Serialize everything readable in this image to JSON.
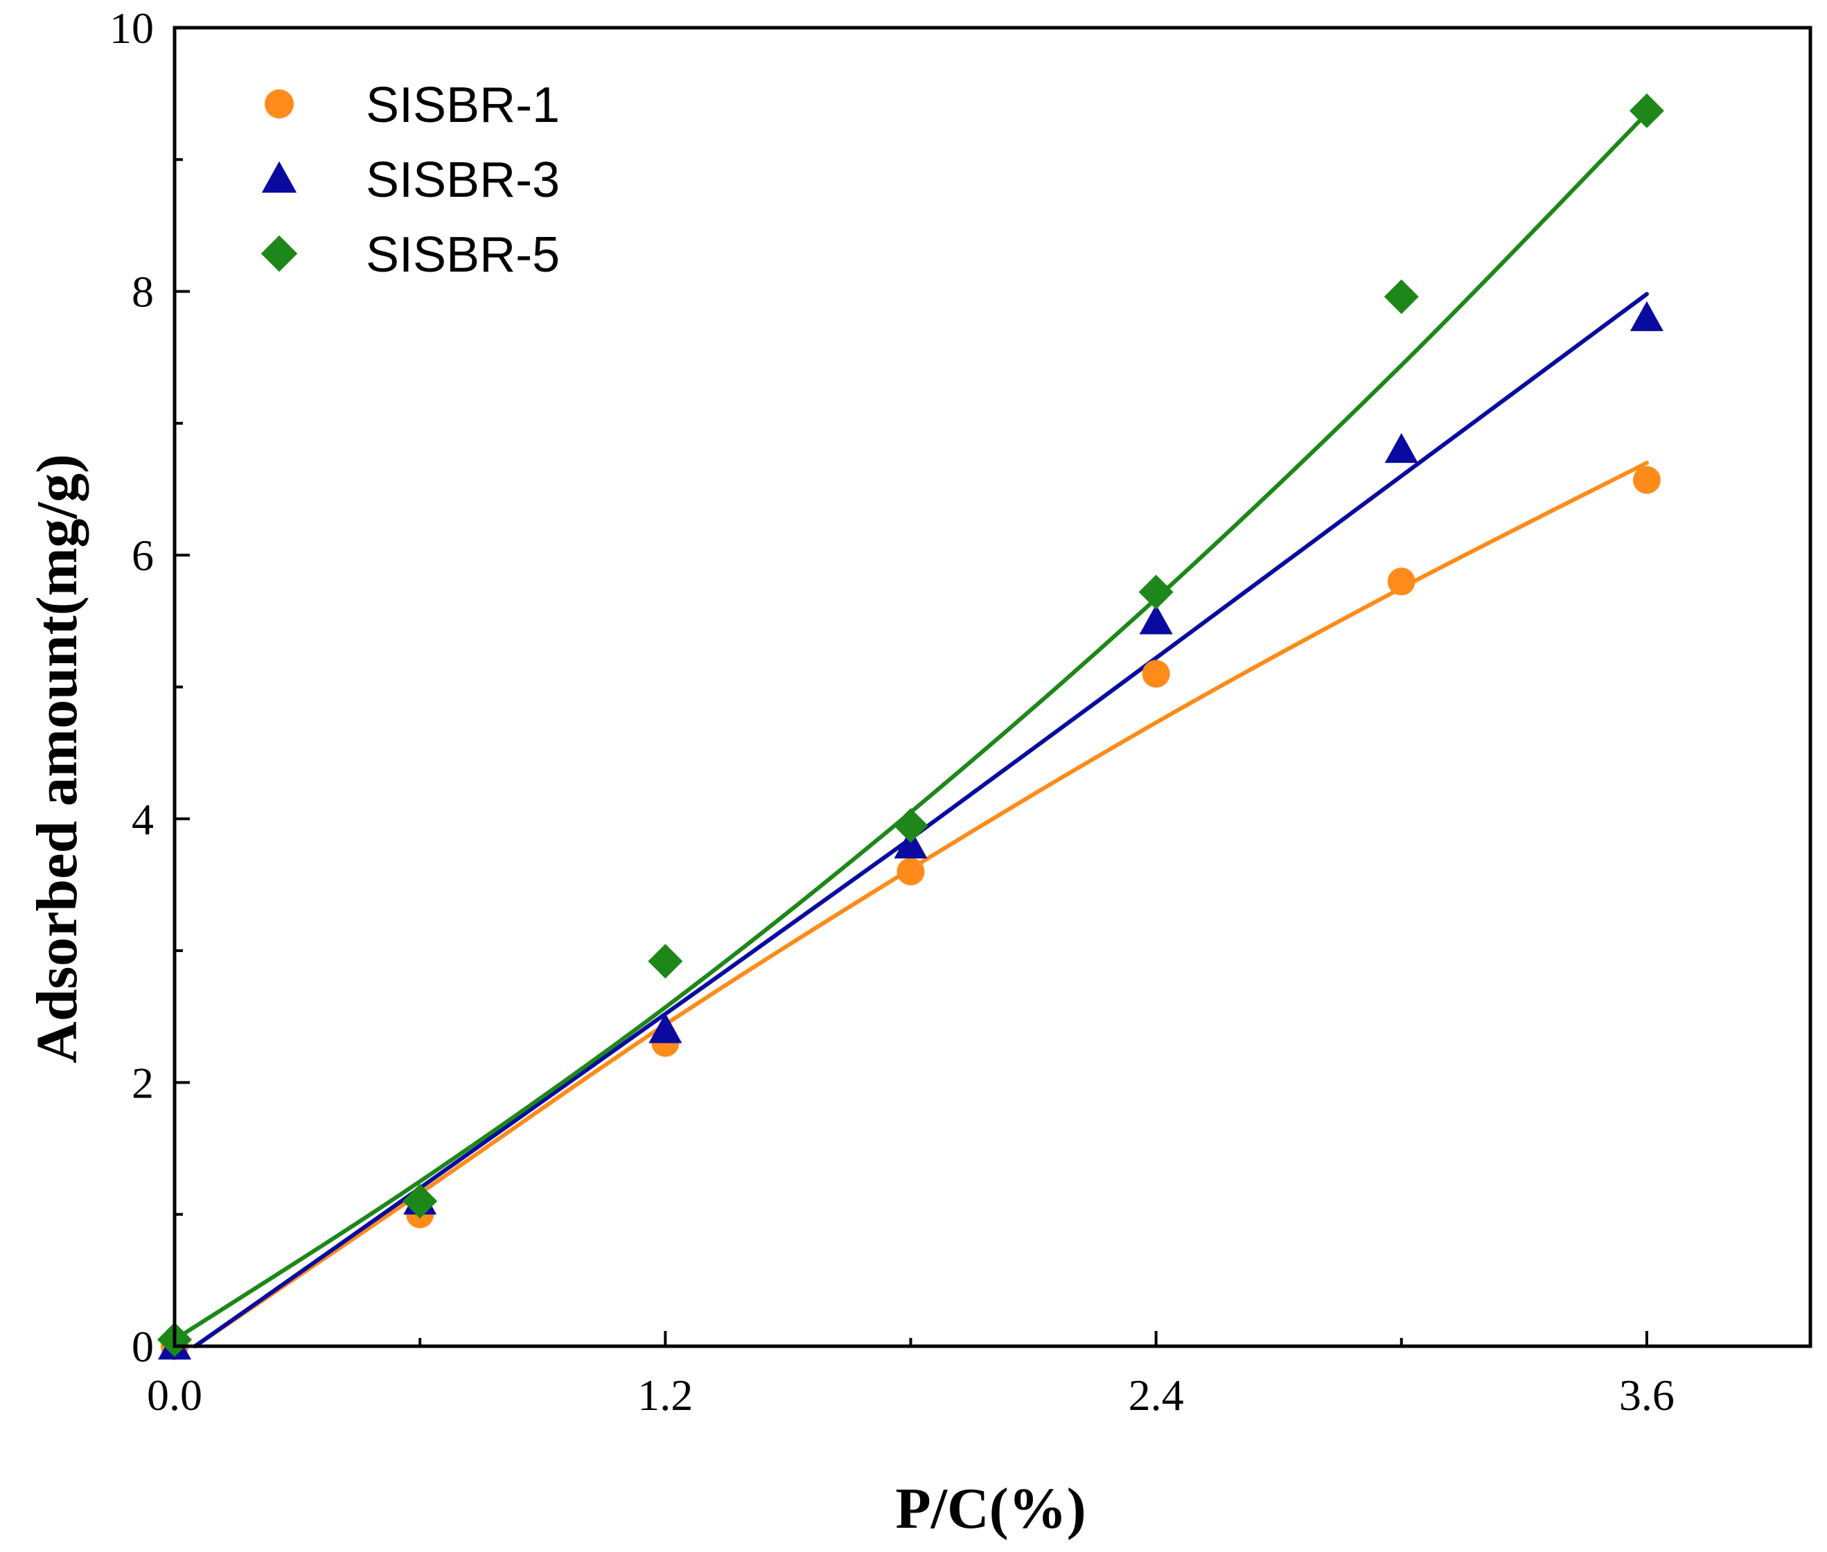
{
  "chart_data": {
    "type": "scatter",
    "title": "",
    "xlabel": "P/C(%)",
    "ylabel": "Adsorbed amount(mg/g)",
    "xlim": [
      0,
      4.0
    ],
    "ylim": [
      0,
      10
    ],
    "xticks": [
      0.0,
      1.2,
      2.4,
      3.6
    ],
    "xtick_labels": [
      "0.0",
      "1.2",
      "2.4",
      "3.6"
    ],
    "yticks": [
      0,
      2,
      4,
      6,
      8,
      10
    ],
    "ytick_labels": [
      "0",
      "2",
      "4",
      "6",
      "8",
      "10"
    ],
    "grid": false,
    "legend_position": "top-left",
    "series": [
      {
        "name": "SISBR-1",
        "marker": "circle",
        "color": "#FF8C1A",
        "x": [
          0.0,
          0.6,
          1.2,
          1.8,
          2.4,
          3.0,
          3.6
        ],
        "y": [
          0.0,
          1.0,
          2.3,
          3.6,
          5.1,
          5.8,
          6.57
        ],
        "fit": {
          "x": [
            0.05,
            0.6,
            1.2,
            1.8,
            2.4,
            3.0,
            3.6
          ],
          "y": [
            0.0,
            1.16,
            2.44,
            3.62,
            4.73,
            5.75,
            6.7
          ]
        }
      },
      {
        "name": "SISBR-3",
        "marker": "triangle",
        "color": "#0A0AA0",
        "x": [
          0.0,
          0.6,
          1.2,
          1.8,
          2.4,
          3.0,
          3.6
        ],
        "y": [
          0.0,
          1.1,
          2.4,
          3.8,
          5.5,
          6.8,
          7.8
        ],
        "fit": {
          "x": [
            0.05,
            0.6,
            1.2,
            1.8,
            2.4,
            3.0,
            3.6
          ],
          "y": [
            0.0,
            1.2,
            2.52,
            3.85,
            5.22,
            6.6,
            7.98
          ]
        }
      },
      {
        "name": "SISBR-5",
        "marker": "diamond",
        "color": "#1E8719",
        "x": [
          0.0,
          0.6,
          1.2,
          1.8,
          2.4,
          3.0,
          3.6
        ],
        "y": [
          0.05,
          1.1,
          2.92,
          3.95,
          5.72,
          7.96,
          9.37
        ],
        "fit": {
          "x": [
            0.0,
            0.6,
            1.2,
            1.8,
            2.4,
            3.0,
            3.6
          ],
          "y": [
            0.05,
            1.25,
            2.57,
            4.05,
            5.67,
            7.44,
            9.35
          ]
        }
      }
    ]
  }
}
